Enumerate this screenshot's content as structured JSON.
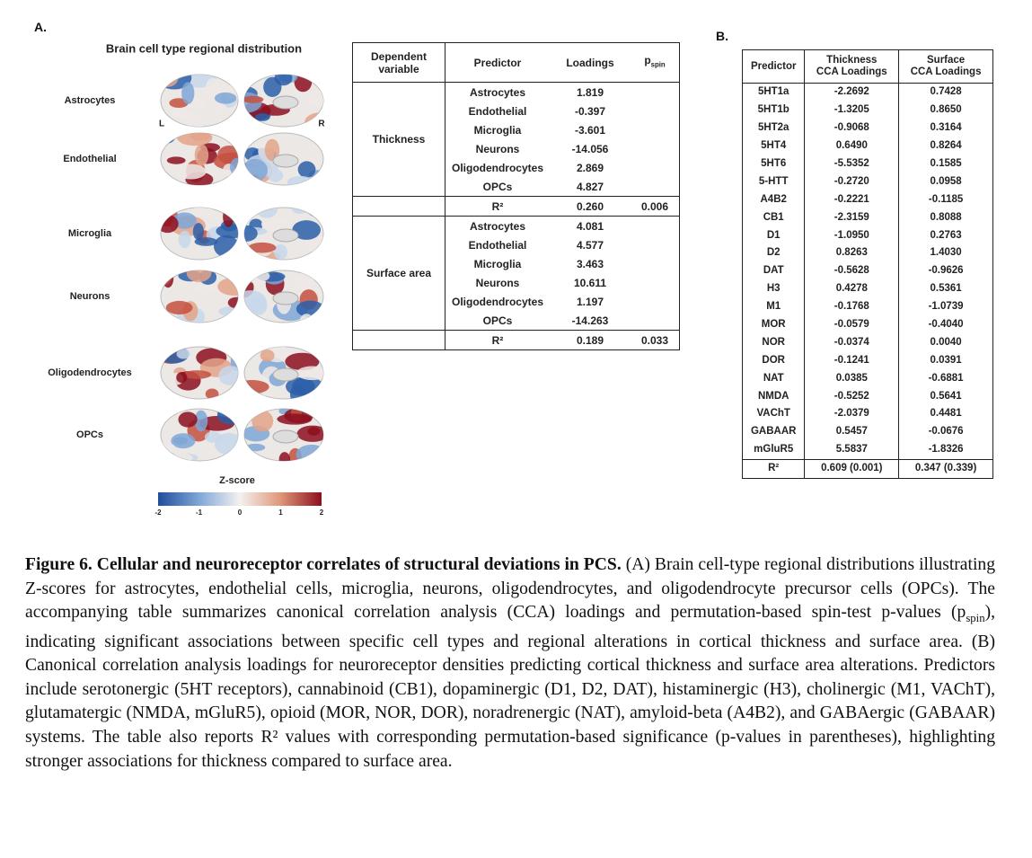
{
  "panel_a": {
    "label": "A.",
    "brain_title": "Brain cell type regional distribution",
    "hemisphere_left": "L",
    "hemisphere_right": "R",
    "cell_types": [
      "Astrocytes",
      "Endothelial",
      "Microglia",
      "Neurons",
      "Oligodendrocytes",
      "OPCs"
    ],
    "colorbar": {
      "title": "Z-score",
      "ticks": [
        "-2",
        "-1",
        "0",
        "1",
        "2"
      ]
    },
    "table": {
      "header": [
        "Dependent variable",
        "Predictor",
        "Loadings"
      ],
      "pspin_header": {
        "main": "p",
        "sub": "spin"
      },
      "groups": [
        {
          "name": "Thickness",
          "rows": [
            [
              "Astrocytes",
              "1.819"
            ],
            [
              "Endothelial",
              "-0.397"
            ],
            [
              "Microglia",
              "-3.601"
            ],
            [
              "Neurons",
              "-14.056"
            ],
            [
              "Oligodendrocytes",
              "2.869"
            ],
            [
              "OPCs",
              "4.827"
            ]
          ],
          "r2": {
            "label": "R²",
            "loading": "0.260",
            "pspin": "0.006"
          }
        },
        {
          "name": "Surface area",
          "rows": [
            [
              "Astrocytes",
              "4.081"
            ],
            [
              "Endothelial",
              "4.577"
            ],
            [
              "Microglia",
              "3.463"
            ],
            [
              "Neurons",
              "10.611"
            ],
            [
              "Oligodendrocytes",
              "1.197"
            ],
            [
              "OPCs",
              "-14.263"
            ]
          ],
          "r2": {
            "label": "R²",
            "loading": "0.189",
            "pspin": "0.033"
          }
        }
      ]
    }
  },
  "panel_b": {
    "label": "B.",
    "header": [
      [
        "Predictor"
      ],
      [
        "Thickness",
        "CCA Loadings"
      ],
      [
        "Surface",
        "CCA Loadings"
      ]
    ],
    "rows": [
      [
        "5HT1a",
        "-2.2692",
        "0.7428"
      ],
      [
        "5HT1b",
        "-1.3205",
        "0.8650"
      ],
      [
        "5HT2a",
        "-0.9068",
        "0.3164"
      ],
      [
        "5HT4",
        "0.6490",
        "0.8264"
      ],
      [
        "5HT6",
        "-5.5352",
        "0.1585"
      ],
      [
        "5-HTT",
        "-0.2720",
        "0.0958"
      ],
      [
        "A4B2",
        "-0.2221",
        "-0.1185"
      ],
      [
        "CB1",
        "-2.3159",
        "0.8088"
      ],
      [
        "D1",
        "-1.0950",
        "0.2763"
      ],
      [
        "D2",
        "0.8263",
        "1.4030"
      ],
      [
        "DAT",
        "-0.5628",
        "-0.9626"
      ],
      [
        "H3",
        "0.4278",
        "0.5361"
      ],
      [
        "M1",
        "-0.1768",
        "-1.0739"
      ],
      [
        "MOR",
        "-0.0579",
        "-0.4040"
      ],
      [
        "NOR",
        "-0.0374",
        "0.0040"
      ],
      [
        "DOR",
        "-0.1241",
        "0.0391"
      ],
      [
        "NAT",
        "0.0385",
        "-0.6881"
      ],
      [
        "NMDA",
        "-0.5252",
        "0.5641"
      ],
      [
        "VAChT",
        "-2.0379",
        "0.4481"
      ],
      [
        "GABAAR",
        "0.5457",
        "-0.0676"
      ],
      [
        "mGluR5",
        "5.5837",
        "-1.8326"
      ]
    ],
    "r2": [
      "R²",
      "0.609 (0.001)",
      "0.347 (0.339)"
    ]
  },
  "caption": [
    {
      "text": "Figure 6. Cellular and neuroreceptor correlates of structural deviations in PCS.",
      "style": "bold"
    },
    {
      "text": " (A) Brain cell-type regional distributions illustrating Z-scores for astrocytes, endothelial cells, microglia, neurons, oligodendrocytes, and oligodendrocyte precursor cells (OPCs). The accompanying table summarizes canonical correlation analysis (CCA) loadings and permutation-based spin-test p-values (p",
      "style": "normal"
    },
    {
      "text": "spin",
      "style": "sub"
    },
    {
      "text": "), indicating significant associations between specific cell types and regional alterations in cortical thickness and surface area. (B) Canonical correlation analysis loadings for neuroreceptor densities predicting cortical thickness and surface area alterations. Predictors include serotonergic (5HT receptors), cannabinoid (CB1), dopaminergic (D1, D2, DAT), histaminergic (H3), cholinergic (M1, VAChT), glutamatergic (NMDA, mGluR5), opioid (MOR, NOR, DOR), noradrenergic (NAT), amyloid-beta (A4B2), and GABAergic (GABAAR) systems. The table also reports R² values with corresponding permutation-based significance (p-values in parentheses), highlighting stronger associations for thickness compared to surface area.",
      "style": "normal"
    }
  ]
}
